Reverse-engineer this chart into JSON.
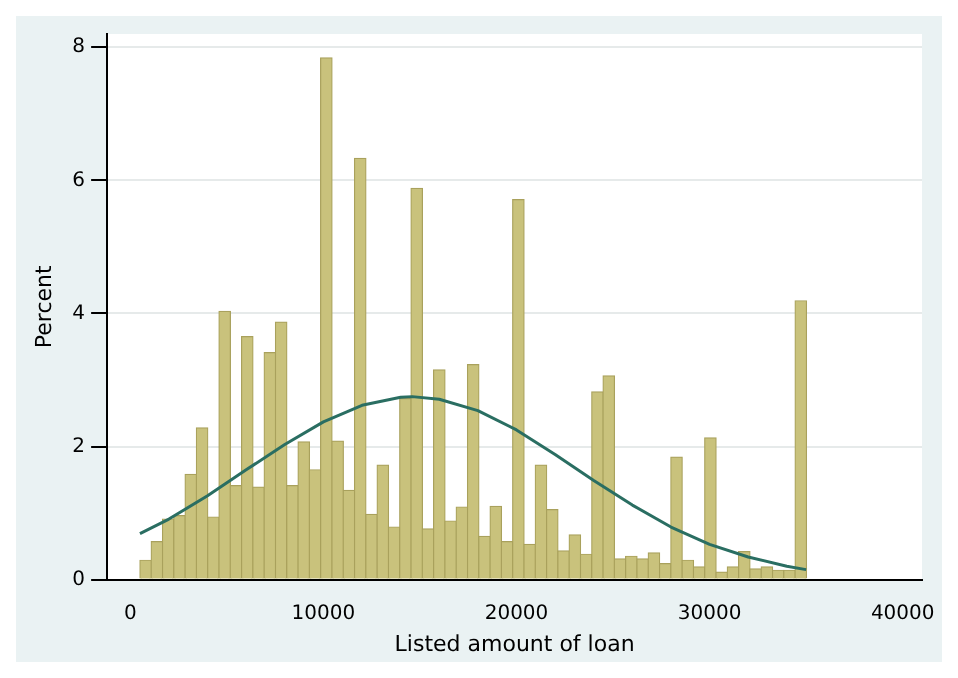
{
  "chart_data": {
    "type": "histogram",
    "xlabel": "Listed amount of loan",
    "ylabel": "Percent",
    "bins": [
      500,
      1085,
      1670,
      2255,
      2840,
      3425,
      4010,
      4595,
      5180,
      5765,
      6350,
      6935,
      7520,
      8105,
      8690,
      9275,
      9860,
      10445,
      11030,
      11615,
      12200,
      12785,
      13370,
      13955,
      14540,
      15125,
      15710,
      16295,
      16880,
      17465,
      18050,
      18635,
      19220,
      19805,
      20390,
      20975,
      21560,
      22145,
      22730,
      23315,
      23900,
      24485,
      25070,
      25655,
      26240,
      26825,
      27410,
      27995,
      28580,
      29165,
      29750,
      30335,
      30920,
      31505,
      32090,
      32675,
      33260,
      33845,
      34430,
      35015
    ],
    "values": [
      0.29,
      0.57,
      0.91,
      0.96,
      1.58,
      2.28,
      0.94,
      4.03,
      1.41,
      3.65,
      1.39,
      3.41,
      3.87,
      1.41,
      2.07,
      1.65,
      7.84,
      2.08,
      1.34,
      6.33,
      0.98,
      1.72,
      0.79,
      2.72,
      5.88,
      0.76,
      3.15,
      0.88,
      1.09,
      3.23,
      0.65,
      1.1,
      0.57,
      5.71,
      0.53,
      1.72,
      1.05,
      0.43,
      0.67,
      0.38,
      2.82,
      3.06,
      0.31,
      0.35,
      0.31,
      0.4,
      0.24,
      1.84,
      0.29,
      0.19,
      2.13,
      0.11,
      0.19,
      0.42,
      0.16,
      0.19,
      0.14,
      0.14,
      4.19
    ],
    "color": "#c9c27c",
    "series": [
      {
        "type": "line",
        "color": "#2a6e62",
        "x": [
          500,
          2000,
          4000,
          6000,
          8000,
          10000,
          12000,
          14000,
          14600,
          16000,
          18000,
          20000,
          22000,
          24000,
          26000,
          28000,
          30000,
          32000,
          34000,
          35000
        ],
        "values": [
          0.69,
          0.91,
          1.26,
          1.65,
          2.03,
          2.37,
          2.62,
          2.74,
          2.75,
          2.71,
          2.54,
          2.25,
          1.88,
          1.49,
          1.12,
          0.79,
          0.53,
          0.34,
          0.2,
          0.15
        ]
      }
    ],
    "xlim": [
      -1200,
      41000
    ],
    "xticks": [
      0,
      10000,
      20000,
      30000,
      40000
    ],
    "ylim": [
      0,
      8.2
    ],
    "yticks": [
      0,
      2,
      4,
      6,
      8
    ],
    "grid": "y",
    "legend": false
  }
}
